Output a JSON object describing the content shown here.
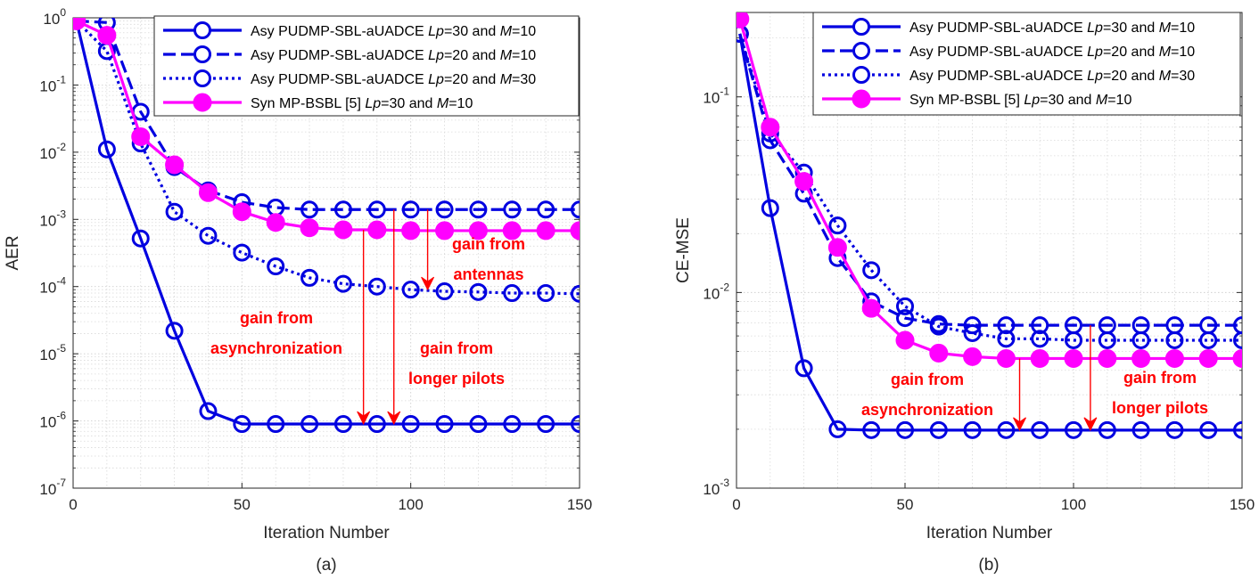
{
  "chart_data": [
    {
      "type": "line",
      "subtitle": "(a)",
      "xlabel": "Iteration Number",
      "ylabel": "AER",
      "xlim": [
        0,
        150
      ],
      "ylim": [
        1e-07,
        1
      ],
      "yscale": "log",
      "grid": true,
      "xticks": [
        0,
        50,
        100,
        150
      ],
      "xtick_labels": [
        "0",
        "50",
        "100",
        "150"
      ],
      "yticks_exp": [
        0,
        -1,
        -2,
        -3,
        -4,
        -5,
        -6,
        -7
      ],
      "ytick_labels": [
        "10",
        "10",
        "10",
        "10",
        "10",
        "10",
        "10",
        "10"
      ],
      "ytick_exps": [
        "0",
        "-1",
        "-2",
        "-3",
        "-4",
        "-5",
        "-6",
        "-7"
      ],
      "legend_position": "top-right",
      "series": [
        {
          "name": "Asy PUDMP-SBL-aUADCE",
          "lp": "30",
          "m": "10",
          "color": "#0000e0",
          "style": "solid",
          "marker": "open-circle",
          "x": [
            1,
            10,
            20,
            30,
            40,
            50,
            60,
            70,
            80,
            90,
            100,
            110,
            120,
            130,
            140,
            150
          ],
          "y": [
            0.9,
            0.011,
            0.00052,
            2.2e-05,
            1.4e-06,
            9e-07,
            9e-07,
            9e-07,
            9e-07,
            9e-07,
            9e-07,
            9e-07,
            9e-07,
            9e-07,
            9e-07,
            9e-07
          ]
        },
        {
          "name": "Asy PUDMP-SBL-aUADCE",
          "lp": "20",
          "m": "10",
          "color": "#0000e0",
          "style": "dashed",
          "marker": "open-circle",
          "x": [
            1,
            10,
            20,
            30,
            40,
            50,
            60,
            70,
            80,
            90,
            100,
            110,
            120,
            130,
            140,
            150
          ],
          "y": [
            0.9,
            0.85,
            0.04,
            0.006,
            0.0027,
            0.0018,
            0.0015,
            0.0014,
            0.0014,
            0.0014,
            0.0014,
            0.0014,
            0.0014,
            0.0014,
            0.0014,
            0.0014
          ]
        },
        {
          "name": "Asy PUDMP-SBL-aUADCE",
          "lp": "20",
          "m": "30",
          "color": "#0000e0",
          "style": "dotted",
          "marker": "open-circle",
          "x": [
            1,
            10,
            20,
            30,
            40,
            50,
            60,
            70,
            80,
            90,
            100,
            110,
            120,
            130,
            140,
            150
          ],
          "y": [
            0.9,
            0.32,
            0.0135,
            0.0013,
            0.00057,
            0.00032,
            0.0002,
            0.000135,
            0.00011,
            0.0001,
            9e-05,
            8.5e-05,
            8.3e-05,
            8e-05,
            8e-05,
            7.8e-05
          ]
        },
        {
          "name": "Syn MP-BSBL [5]",
          "lp": "30",
          "m": "10",
          "color": "#ff00ff",
          "style": "solid",
          "marker": "filled-circle",
          "x": [
            1,
            10,
            20,
            30,
            40,
            50,
            60,
            70,
            80,
            90,
            100,
            110,
            120,
            130,
            140,
            150
          ],
          "y": [
            0.9,
            0.55,
            0.017,
            0.0065,
            0.0025,
            0.0013,
            0.0009,
            0.00075,
            0.0007,
            0.0007,
            0.00068,
            0.00068,
            0.00068,
            0.00068,
            0.00068,
            0.00068
          ]
        }
      ],
      "annotations": [
        {
          "lines": [
            "gain from",
            "antennas"
          ]
        },
        {
          "lines": [
            "gain from",
            "asynchronization"
          ]
        },
        {
          "lines": [
            "gain from",
            "longer pilots"
          ]
        }
      ],
      "arrows": [
        {
          "x": 105,
          "y_from": 0.0014,
          "y_to": 9e-05
        },
        {
          "x": 86,
          "y_from": 0.0007,
          "y_to": 9e-07
        },
        {
          "x": 95,
          "y_from": 0.0014,
          "y_to": 9e-07
        }
      ]
    },
    {
      "type": "line",
      "subtitle": "(b)",
      "xlabel": "Iteration Number",
      "ylabel": "CE-MSE",
      "xlim": [
        0,
        150
      ],
      "ylim": [
        0.001,
        0.27
      ],
      "yscale": "log",
      "grid": true,
      "xticks": [
        0,
        50,
        100,
        150
      ],
      "xtick_labels": [
        "0",
        "50",
        "100",
        "150"
      ],
      "yticks_exp": [
        -1,
        -2,
        -3
      ],
      "ytick_labels": [
        "10",
        "10",
        "10"
      ],
      "ytick_exps": [
        "-1",
        "-2",
        "-3"
      ],
      "legend_position": "top-right",
      "series": [
        {
          "name": "Asy PUDMP-SBL-aUADCE",
          "lp": "30",
          "m": "10",
          "color": "#0000e0",
          "style": "solid",
          "marker": "open-circle",
          "x": [
            1,
            10,
            20,
            30,
            40,
            50,
            60,
            70,
            80,
            90,
            100,
            110,
            120,
            130,
            140,
            150
          ],
          "y": [
            0.21,
            0.027,
            0.0041,
            0.002,
            0.00198,
            0.00198,
            0.00198,
            0.00198,
            0.00198,
            0.00198,
            0.00198,
            0.00198,
            0.00198,
            0.00198,
            0.00198,
            0.00198
          ]
        },
        {
          "name": "Asy PUDMP-SBL-aUADCE",
          "lp": "20",
          "m": "10",
          "color": "#0000e0",
          "style": "dashed",
          "marker": "open-circle",
          "x": [
            1,
            10,
            20,
            30,
            40,
            50,
            60,
            70,
            80,
            90,
            100,
            110,
            120,
            130,
            140,
            150
          ],
          "y": [
            0.21,
            0.06,
            0.032,
            0.015,
            0.009,
            0.0074,
            0.0069,
            0.0068,
            0.0068,
            0.0068,
            0.0068,
            0.0068,
            0.0068,
            0.0068,
            0.0068,
            0.0068
          ]
        },
        {
          "name": "Asy PUDMP-SBL-aUADCE",
          "lp": "20",
          "m": "30",
          "color": "#0000e0",
          "style": "dotted",
          "marker": "open-circle",
          "x": [
            1,
            10,
            20,
            30,
            40,
            50,
            60,
            70,
            80,
            90,
            100,
            110,
            120,
            130,
            140,
            150
          ],
          "y": [
            0.21,
            0.065,
            0.041,
            0.022,
            0.013,
            0.0085,
            0.0067,
            0.0062,
            0.0058,
            0.0058,
            0.0057,
            0.0057,
            0.0057,
            0.0057,
            0.0057,
            0.0057
          ]
        },
        {
          "name": "Syn MP-BSBL [5]",
          "lp": "30",
          "m": "10",
          "color": "#ff00ff",
          "style": "solid",
          "marker": "filled-circle",
          "x": [
            1,
            10,
            20,
            30,
            40,
            50,
            60,
            70,
            80,
            90,
            100,
            110,
            120,
            130,
            140,
            150
          ],
          "y": [
            0.25,
            0.07,
            0.037,
            0.017,
            0.0083,
            0.0057,
            0.0049,
            0.0047,
            0.0046,
            0.0046,
            0.0046,
            0.0046,
            0.0046,
            0.0046,
            0.0046,
            0.0046
          ]
        }
      ],
      "annotations": [
        {
          "lines": [
            "gain from",
            "asynchronization"
          ]
        },
        {
          "lines": [
            "gain from",
            "longer pilots"
          ]
        }
      ],
      "arrows": [
        {
          "x": 84,
          "y_from": 0.0046,
          "y_to": 0.00198
        },
        {
          "x": 105,
          "y_from": 0.0068,
          "y_to": 0.00198
        }
      ]
    }
  ],
  "legend_tokens": {
    "lp": "Lp",
    "m": "M",
    "eq": "=",
    "and": "and"
  }
}
